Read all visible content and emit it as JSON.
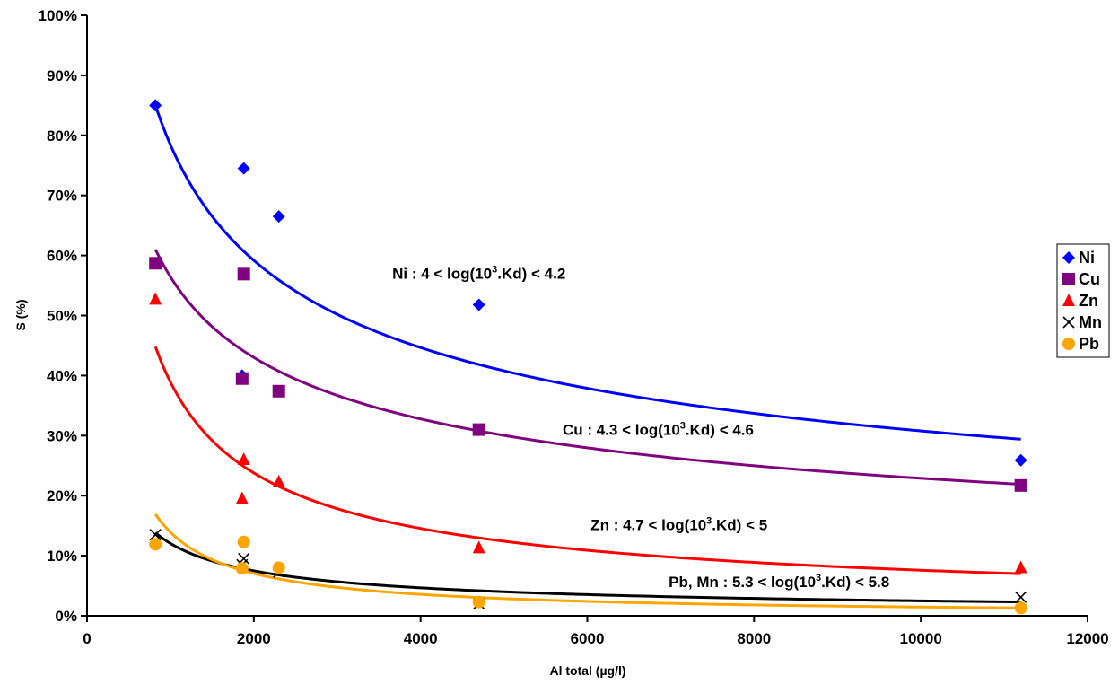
{
  "chart_data": {
    "type": "scatter",
    "xlabel": "Al total (µg/l)",
    "ylabel": "S (%)",
    "xlim": [
      0,
      12000
    ],
    "ylim": [
      0,
      100
    ],
    "x_ticks": [
      "0",
      "2000",
      "4000",
      "6000",
      "8000",
      "10000",
      "12000"
    ],
    "y_ticks": [
      "0%",
      "10%",
      "20%",
      "30%",
      "40%",
      "50%",
      "60%",
      "70%",
      "80%",
      "90%",
      "100%"
    ],
    "grid": false,
    "legend_position": "right",
    "series": [
      {
        "name": "Ni",
        "color": "#0000ff",
        "marker": "diamond",
        "points": [
          [
            820,
            85.0
          ],
          [
            1880,
            74.5
          ],
          [
            1860,
            40.0
          ],
          [
            2300,
            66.5
          ],
          [
            4700,
            51.8
          ],
          [
            11200,
            25.9
          ]
        ],
        "trend": {
          "from": 820,
          "to": 11200,
          "y_start": 85.0,
          "y_end": 29.4
        }
      },
      {
        "name": "Cu",
        "color": "#800080",
        "marker": "square",
        "points": [
          [
            820,
            58.7
          ],
          [
            1880,
            56.9
          ],
          [
            1860,
            39.5
          ],
          [
            2300,
            37.4
          ],
          [
            4700,
            31.0
          ],
          [
            11200,
            21.7
          ]
        ],
        "trend": {
          "from": 820,
          "to": 11200,
          "y_start": 61.0,
          "y_end": 21.9
        }
      },
      {
        "name": "Zn",
        "color": "#ff0000",
        "marker": "triangle",
        "points": [
          [
            820,
            52.7
          ],
          [
            1880,
            26.0
          ],
          [
            1860,
            19.5
          ],
          [
            2300,
            22.3
          ],
          [
            4700,
            11.3
          ],
          [
            11200,
            8.0
          ]
        ],
        "trend": {
          "from": 820,
          "to": 11200,
          "y_start": 44.8,
          "y_end": 7.0
        }
      },
      {
        "name": "Mn",
        "color": "#000000",
        "marker": "cross",
        "points": [
          [
            820,
            13.5
          ],
          [
            1880,
            9.5
          ],
          [
            1860,
            8.5
          ],
          [
            2300,
            7.3
          ],
          [
            4700,
            2.0
          ],
          [
            11200,
            3.1
          ]
        ],
        "trend": {
          "from": 820,
          "to": 11200,
          "y_start": 13.8,
          "y_end": 2.3
        }
      },
      {
        "name": "Pb",
        "color": "#ffa500",
        "marker": "circle",
        "points": [
          [
            820,
            11.9
          ],
          [
            1880,
            12.3
          ],
          [
            1860,
            7.9
          ],
          [
            2300,
            8.0
          ],
          [
            4700,
            2.3
          ],
          [
            11200,
            1.3
          ]
        ],
        "trend": {
          "from": 820,
          "to": 11200,
          "y_start": 16.9,
          "y_end": 1.3
        }
      }
    ],
    "annotations": [
      {
        "prefix": "Ni : 4 < log(10",
        "sup": "3",
        "suffix": ".Kd) < 4.2",
        "x": 4700,
        "y": 57.0
      },
      {
        "prefix": "Cu : 4.3 < log(10",
        "sup": "3",
        "suffix": ".Kd) < 4.6",
        "x": 6850,
        "y": 31.0
      },
      {
        "prefix": "Zn : 4.7 < log(10",
        "sup": "3",
        "suffix": ".Kd) < 5",
        "x": 7100,
        "y": 15.2
      },
      {
        "prefix": "Pb, Mn : 5.3 < log(10",
        "sup": "3",
        "suffix": ".Kd) < 5.8",
        "x": 8300,
        "y": 5.7
      }
    ]
  }
}
